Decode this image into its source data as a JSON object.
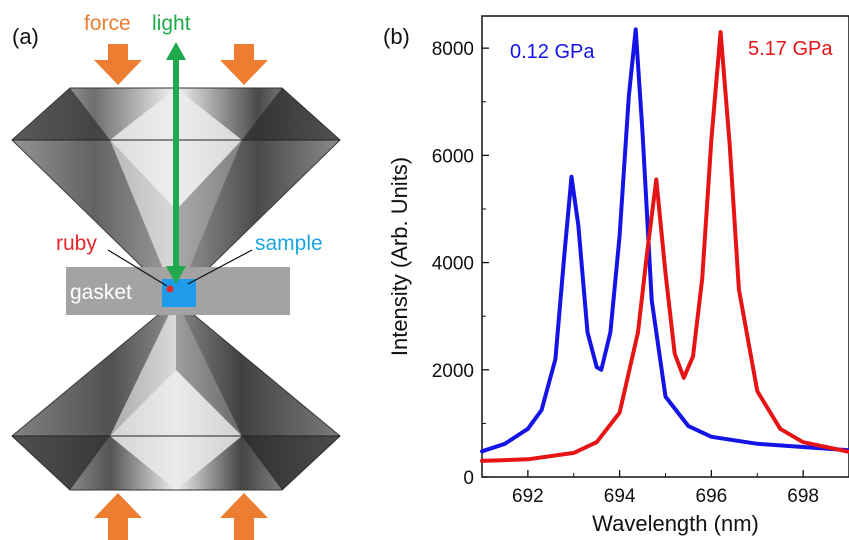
{
  "panel_a": {
    "panel_label": "(a)",
    "labels": {
      "force": "force",
      "light": "light",
      "ruby": "ruby",
      "sample": "sample",
      "gasket": "gasket"
    },
    "colors": {
      "force": "#ED7D31",
      "light": "#22A94B",
      "ruby": "#E8272A",
      "sample": "#1CA6E0",
      "gasket": "#9E9E9E",
      "sample_chamber": "#1E9BEA"
    }
  },
  "panel_b": {
    "panel_label": "(b)"
  },
  "chart_data": {
    "type": "line",
    "xlabel": "Wavelength (nm)",
    "ylabel": "Intensity (Arb. Units)",
    "xlim": [
      691,
      699
    ],
    "ylim": [
      0,
      8600
    ],
    "x_ticks": [
      692,
      694,
      696,
      698
    ],
    "y_ticks": [
      0,
      2000,
      4000,
      6000,
      8000
    ],
    "grid": false,
    "legend": "in-plot text labels at top-left and top-right",
    "series": [
      {
        "name": "0.12 GPa",
        "color": "#1414E6",
        "x": [
          691.0,
          691.5,
          692.0,
          692.3,
          692.6,
          692.8,
          692.95,
          693.1,
          693.3,
          693.5,
          693.6,
          693.8,
          694.0,
          694.2,
          694.35,
          694.5,
          694.7,
          695.0,
          695.5,
          696.0,
          697.0,
          698.0,
          699.0
        ],
        "y": [
          480,
          620,
          900,
          1250,
          2200,
          4200,
          5600,
          4700,
          2700,
          2050,
          2000,
          2700,
          4500,
          7100,
          8350,
          6400,
          3300,
          1500,
          950,
          750,
          620,
          560,
          500
        ]
      },
      {
        "name": "5.17 GPa",
        "color": "#E61414",
        "x": [
          691.0,
          692.0,
          693.0,
          693.5,
          694.0,
          694.4,
          694.6,
          694.8,
          695.0,
          695.2,
          695.4,
          695.6,
          695.8,
          696.0,
          696.2,
          696.4,
          696.6,
          697.0,
          697.5,
          698.0,
          699.0
        ],
        "y": [
          300,
          330,
          450,
          650,
          1200,
          2700,
          4200,
          5550,
          3800,
          2300,
          1850,
          2250,
          3700,
          6300,
          8300,
          6200,
          3500,
          1600,
          900,
          650,
          470
        ]
      }
    ]
  }
}
